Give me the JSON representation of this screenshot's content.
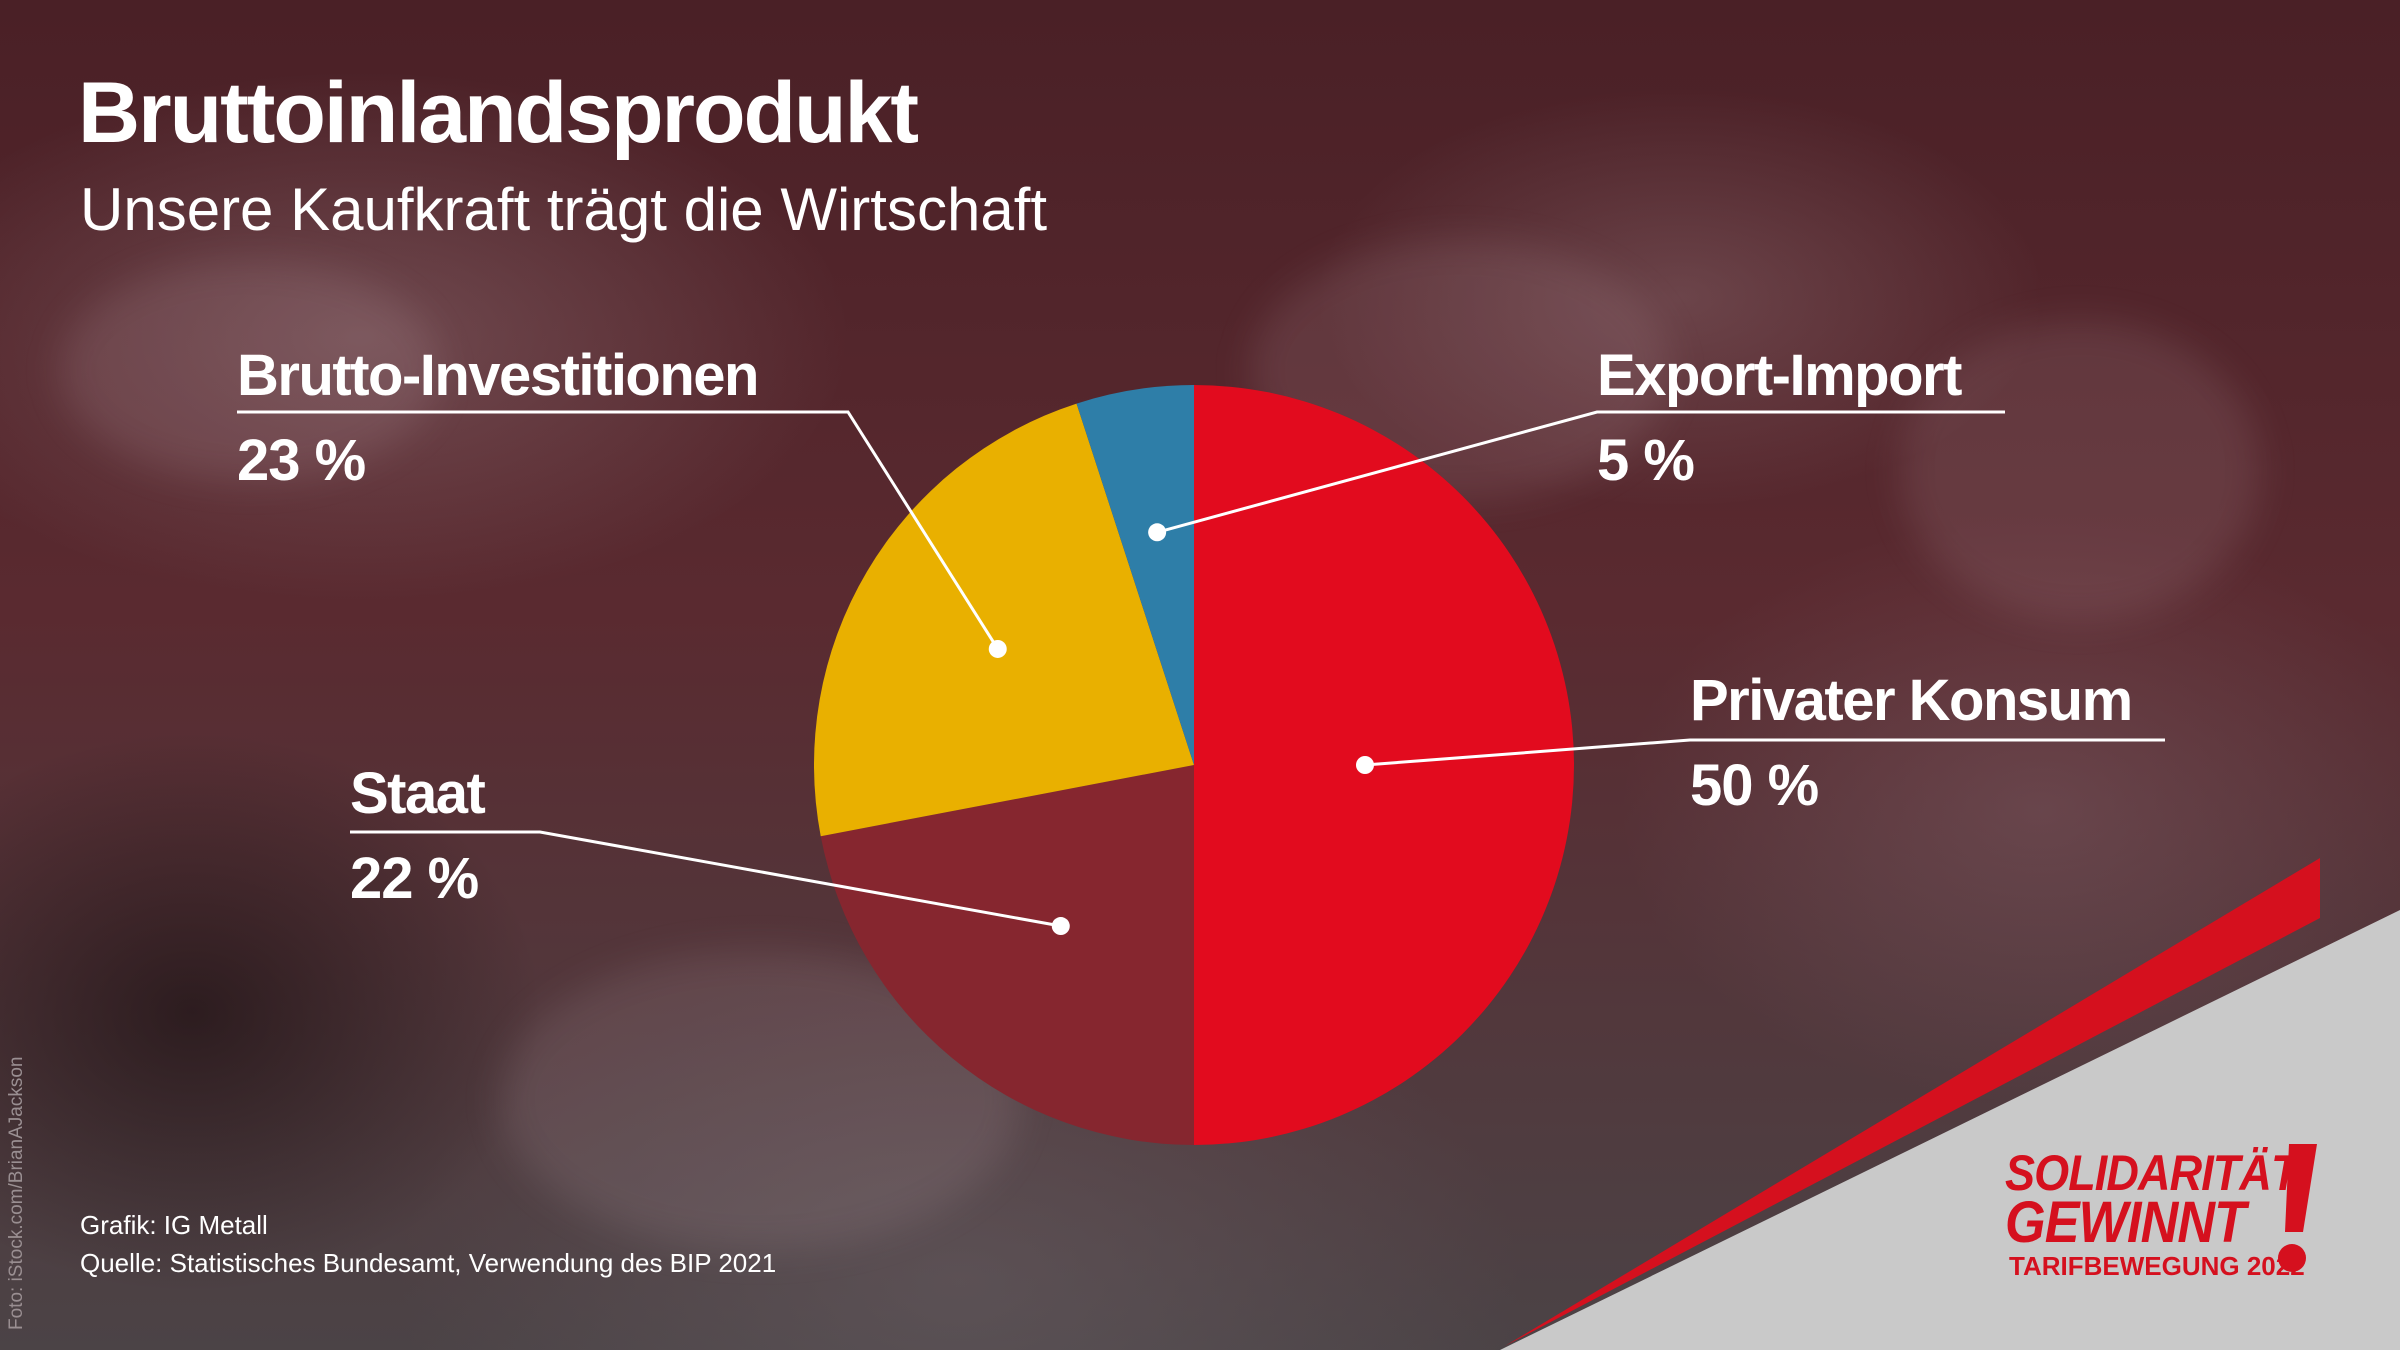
{
  "header": {
    "title": "Bruttoinlandsprodukt",
    "subtitle": "Unsere Kaufkraft trägt die Wirtschaft"
  },
  "chart_data": {
    "type": "pie",
    "title": "Bruttoinlandsprodukt",
    "subtitle": "Unsere Kaufkraft trägt die Wirtschaft",
    "unit": "%",
    "slices": [
      {
        "label": "Privater Konsum",
        "value": 50,
        "display": "50 %",
        "color": "#e20b1e"
      },
      {
        "label": "Staat",
        "value": 22,
        "display": "22 %",
        "color": "#86262f"
      },
      {
        "label": "Brutto-Investitionen",
        "value": 23,
        "display": "23 %",
        "color": "#e9b000"
      },
      {
        "label": "Export-Import",
        "value": 5,
        "display": "5 %",
        "color": "#2e7ea8"
      }
    ]
  },
  "footer": {
    "graphic": "Grafik: IG Metall",
    "source": "Quelle: Statistisches Bundesamt, Verwendung des BIP 2021",
    "photo_credit": "Foto: iStock.com/BrianAJackson"
  },
  "logo": {
    "line1": "SOLIDARITÄT",
    "line2": "GEWINNT",
    "line3": "TARIFBEWEGUNG 2022",
    "color": "#d5101e"
  },
  "colors": {
    "accent_red": "#e20b1e",
    "corner_gray": "#c9c9c9"
  }
}
